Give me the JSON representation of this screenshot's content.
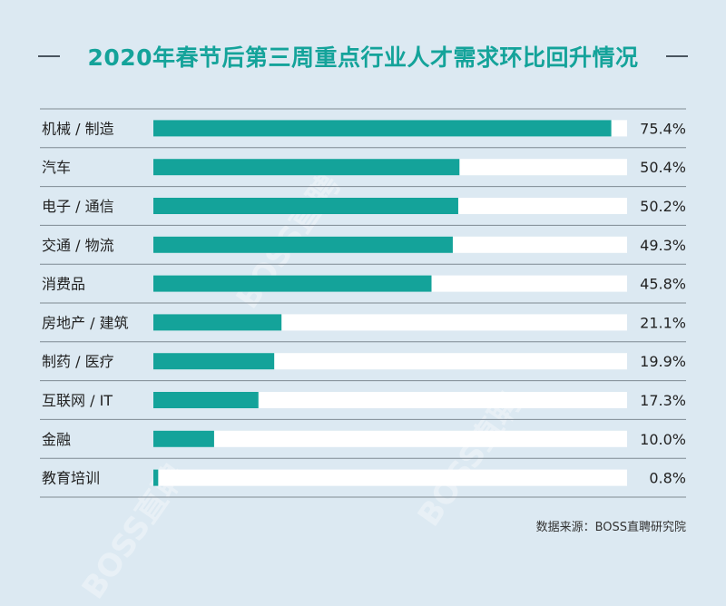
{
  "title": "2020年春节后第三周重点行业人才需求环比回升情况",
  "source": "数据来源：BOSS直聘研究院",
  "watermark": "BOSS直聘",
  "colors": {
    "bar": "#14a39a",
    "track": "#ffffff",
    "background": "#dce9f2",
    "divider": "#7f8a93"
  },
  "chart_data": {
    "type": "bar",
    "orientation": "horizontal",
    "categories": [
      "机械 / 制造",
      "汽车",
      "电子 / 通信",
      "交通 / 物流",
      "消费品",
      "房地产 / 建筑",
      "制药 / 医疗",
      "互联网 / IT",
      "金融",
      "教育培训"
    ],
    "values": [
      75.4,
      50.4,
      50.2,
      49.3,
      45.8,
      21.1,
      19.9,
      17.3,
      10.0,
      0.8
    ],
    "value_labels": [
      "75.4%",
      "50.4%",
      "50.2%",
      "49.3%",
      "45.8%",
      "21.1%",
      "19.9%",
      "17.3%",
      "10.0%",
      "0.8%"
    ],
    "xlim": [
      0,
      78
    ],
    "unit": "%"
  }
}
